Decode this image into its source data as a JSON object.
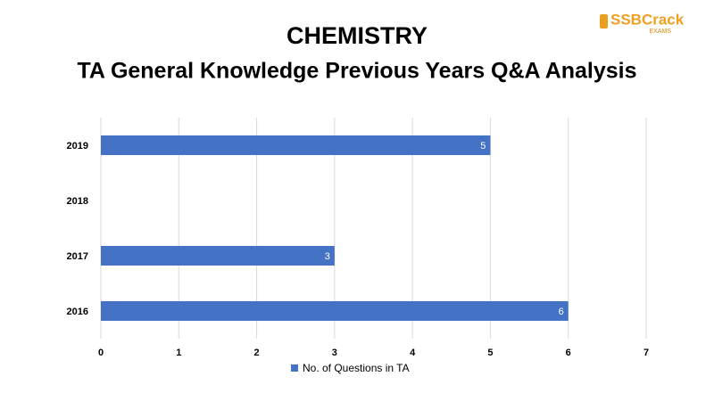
{
  "chart_data": {
    "type": "hbar",
    "title": "CHEMISTRY",
    "subtitle": "TA General Knowledge Previous Years Q&A Analysis",
    "categories": [
      "2019",
      "2018",
      "2017",
      "2016"
    ],
    "series": [
      {
        "name": "No. of Questions in TA",
        "color": "#4472c4",
        "values": [
          5,
          null,
          3,
          6
        ]
      }
    ],
    "xlim": [
      0,
      7
    ],
    "xticks": [
      0,
      1,
      2,
      3,
      4,
      5,
      6,
      7
    ],
    "grid": true,
    "legend": "bottom"
  },
  "logo": {
    "name": "SSBCrack",
    "sub": "EXAMS"
  }
}
